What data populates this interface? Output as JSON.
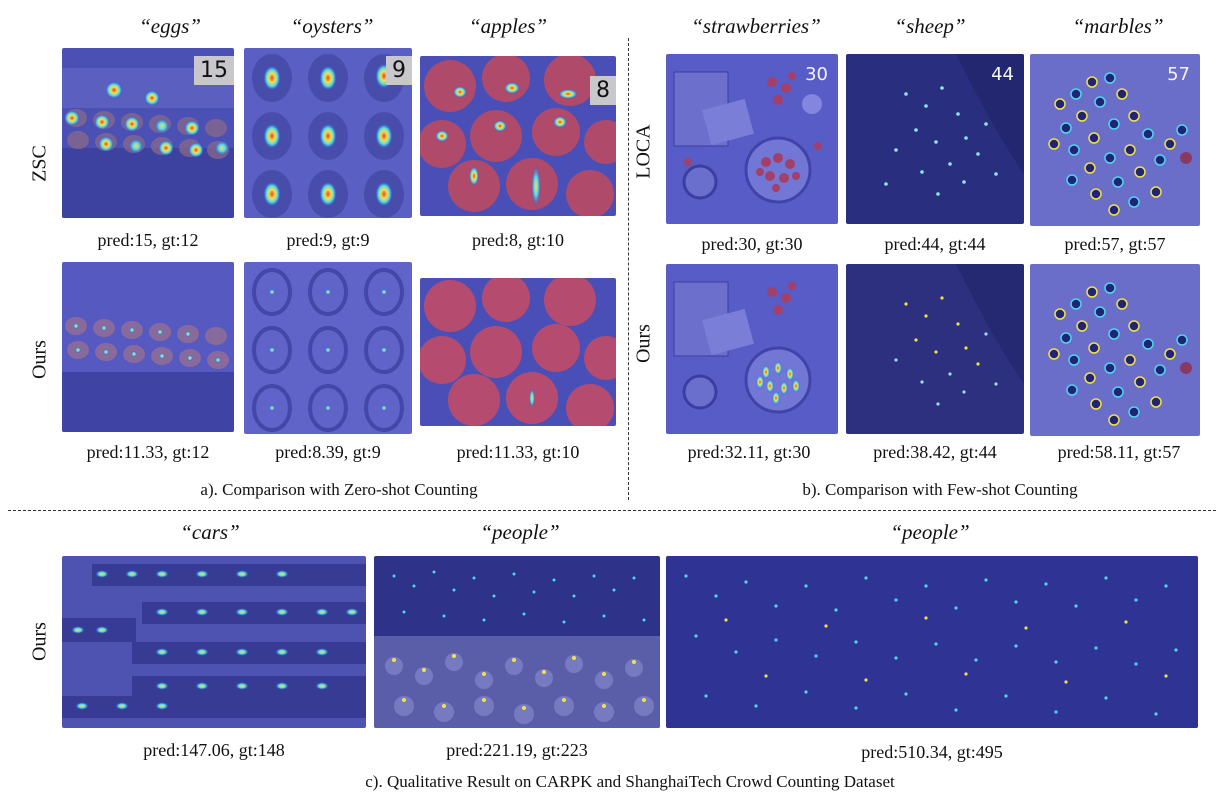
{
  "zero_shot": {
    "titles": [
      "“eggs”",
      "“oysters”",
      "“apples”"
    ],
    "row_labels": [
      "ZSC",
      "Ours"
    ],
    "badges": [
      "15",
      "9",
      "8"
    ],
    "captions_zsc": [
      "pred:15, gt:12",
      "pred:9, gt:9",
      "pred:8, gt:10"
    ],
    "captions_ours": [
      "pred:11.33, gt:12",
      "pred:8.39, gt:9",
      "pred:11.33, gt:10"
    ],
    "section_caption": "a). Comparison with Zero-shot Counting"
  },
  "few_shot": {
    "titles": [
      "“strawberries”",
      "“sheep”",
      "“marbles”"
    ],
    "row_labels": [
      "LOCA",
      "Ours"
    ],
    "badges": [
      "30",
      "44",
      "57"
    ],
    "captions_loca": [
      "pred:30, gt:30",
      "pred:44, gt:44",
      "pred:57, gt:57"
    ],
    "captions_ours": [
      "pred:32.11, gt:30",
      "pred:38.42, gt:44",
      "pred:58.11, gt:57"
    ],
    "section_caption": "b). Comparison with Few-shot Counting"
  },
  "qualitative": {
    "titles": [
      "“cars”",
      "“people”",
      "“people”"
    ],
    "row_label": "Ours",
    "captions": [
      "pred:147.06, gt:148",
      "pred:221.19, gt:223",
      "pred:510.34, gt:495"
    ],
    "section_caption": "c). Qualitative Result on CARPK and ShanghaiTech Crowd Counting Dataset"
  },
  "colors": {
    "overlay_blue": "#3a3fb8",
    "dark_blue": "#1e2270",
    "heat_red": "#e8402a",
    "heat_yellow": "#f2e24a",
    "heat_cyan": "#4fd6f0"
  }
}
